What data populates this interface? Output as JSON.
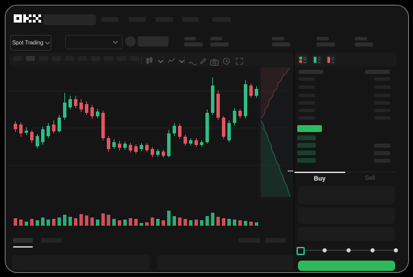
{
  "brand": {
    "logo_text": "OKX"
  },
  "topnav": {
    "nav_item_count": 5,
    "search_placeholder": ""
  },
  "market_bar": {
    "pair_selector_label": "Spot Trading",
    "stat_group_count": 5
  },
  "toolbar": {
    "timeframe_button_count": 10,
    "selected_timeframe_index": 1,
    "icons": [
      "candle-style-dropdown",
      "indicator-dropdown",
      "wave-line",
      "draw-pencil",
      "camera-snapshot",
      "history-clock",
      "fullscreen-expand"
    ]
  },
  "order_book": {
    "view_toggles": [
      "combined-book",
      "bids-only-book",
      "asks-only-book"
    ],
    "selected_view": "combined-book",
    "ask_row_count": 6,
    "bid_row_count": 4,
    "last_price_highlight": "up"
  },
  "trade_panel": {
    "buy_tab": "Buy",
    "sell_tab": "Sell",
    "active_tab": "Buy",
    "slider": {
      "stops": 5,
      "value_percent": 0
    },
    "submit_button_label": ""
  },
  "bottom_bar": {
    "tab_count": 2,
    "active_tab_index": 0,
    "chip_count": 2,
    "panel_count": 2
  },
  "colors": {
    "up": "#2EBD85",
    "down": "#E35461",
    "price_row": "#2ABD5E",
    "bid_dim": "#1A3F2D",
    "buy_button": "#2DBA5C"
  },
  "chart_data": {
    "type": "candlestick",
    "title": "",
    "xlabel": "",
    "ylabel": "",
    "price_scale": {
      "min": 0,
      "max": 100,
      "note": "normalized 0-100, no axis labels visible in screenshot"
    },
    "gridlines_p": [
      82.6,
      54.2,
      25.3
    ],
    "candles": [
      [
        57.4,
        59.5,
        51.1,
        53.2
      ],
      [
        56.8,
        58.4,
        47.4,
        50.0
      ],
      [
        50.5,
        54.7,
        48.9,
        52.1
      ],
      [
        51.1,
        52.6,
        42.6,
        44.7
      ],
      [
        40.0,
        49.5,
        38.4,
        47.9
      ],
      [
        43.2,
        55.3,
        41.1,
        53.2
      ],
      [
        47.9,
        57.9,
        46.3,
        55.8
      ],
      [
        56.8,
        60.0,
        50.0,
        51.6
      ],
      [
        51.6,
        64.2,
        50.5,
        62.1
      ],
      [
        62.1,
        81.1,
        60.5,
        73.7
      ],
      [
        70.0,
        79.0,
        68.4,
        76.3
      ],
      [
        76.3,
        78.9,
        69.5,
        71.1
      ],
      [
        73.7,
        76.3,
        66.3,
        68.4
      ],
      [
        72.6,
        74.7,
        64.2,
        65.8
      ],
      [
        70.0,
        72.1,
        61.1,
        63.2
      ],
      [
        63.2,
        68.9,
        61.6,
        66.8
      ],
      [
        65.8,
        67.4,
        44.7,
        46.3
      ],
      [
        46.3,
        47.9,
        35.8,
        37.9
      ],
      [
        39.5,
        45.3,
        37.9,
        43.2
      ],
      [
        42.1,
        44.2,
        36.8,
        38.9
      ],
      [
        38.9,
        43.7,
        37.4,
        42.1
      ],
      [
        41.1,
        42.6,
        35.3,
        36.8
      ],
      [
        40.0,
        41.6,
        34.2,
        35.8
      ],
      [
        37.9,
        42.6,
        36.3,
        41.1
      ],
      [
        41.1,
        42.5,
        35.5,
        37.0
      ],
      [
        38.0,
        39.5,
        31.6,
        33.5
      ],
      [
        33.5,
        38.0,
        31.8,
        36.5
      ],
      [
        36.0,
        37.5,
        31.6,
        32.8
      ],
      [
        32.6,
        52.6,
        31.6,
        50.0
      ],
      [
        50.0,
        58.0,
        48.0,
        55.8
      ],
      [
        55.8,
        57.4,
        45.8,
        47.4
      ],
      [
        47.4,
        48.9,
        40.5,
        42.1
      ],
      [
        42.1,
        46.3,
        40.5,
        44.7
      ],
      [
        44.7,
        46.3,
        39.5,
        41.1
      ],
      [
        41.1,
        44.7,
        39.7,
        43.2
      ],
      [
        43.2,
        68.4,
        42.1,
        65.8
      ],
      [
        65.8,
        93.2,
        64.2,
        86.8
      ],
      [
        80.5,
        83.0,
        60.5,
        62.1
      ],
      [
        62.1,
        63.2,
        45.8,
        47.4
      ],
      [
        44.7,
        60.0,
        43.2,
        58.0
      ],
      [
        58.0,
        69.5,
        56.0,
        67.4
      ],
      [
        67.4,
        68.9,
        61.6,
        63.2
      ],
      [
        63.2,
        91.0,
        61.6,
        87.9
      ],
      [
        86.8,
        88.4,
        77.4,
        78.9
      ],
      [
        78.9,
        86.3,
        77.4,
        84.2
      ]
    ],
    "volumes": [
      44,
      36,
      24,
      40,
      32,
      48,
      36,
      40,
      48,
      64,
      52,
      44,
      68,
      60,
      48,
      36,
      72,
      64,
      40,
      32,
      36,
      44,
      40,
      16,
      20,
      48,
      40,
      32,
      88,
      56,
      48,
      40,
      32,
      36,
      32,
      56,
      76,
      52,
      44,
      40,
      36,
      32,
      28,
      24,
      20
    ],
    "depth_overlay": {
      "asks_steps": [
        [
          373,
          75
        ],
        [
          378,
          69
        ],
        [
          379,
          62
        ],
        [
          384,
          56
        ],
        [
          385,
          49
        ],
        [
          390,
          43
        ],
        [
          392,
          36
        ],
        [
          397,
          31
        ],
        [
          398,
          24
        ],
        [
          403,
          19
        ],
        [
          405,
          13
        ],
        [
          410,
          9
        ],
        [
          412,
          5
        ],
        [
          416,
          2
        ]
      ],
      "bids_steps": [
        [
          373,
          78
        ],
        [
          377,
          85
        ],
        [
          378,
          92
        ],
        [
          382,
          99
        ],
        [
          384,
          107
        ],
        [
          388,
          114
        ],
        [
          389,
          122
        ],
        [
          393,
          129
        ],
        [
          395,
          137
        ],
        [
          399,
          144
        ],
        [
          401,
          152
        ],
        [
          405,
          159
        ],
        [
          407,
          167
        ],
        [
          411,
          174
        ],
        [
          413,
          182
        ],
        [
          416,
          190
        ]
      ],
      "last_price_marker_y": 151
    }
  }
}
